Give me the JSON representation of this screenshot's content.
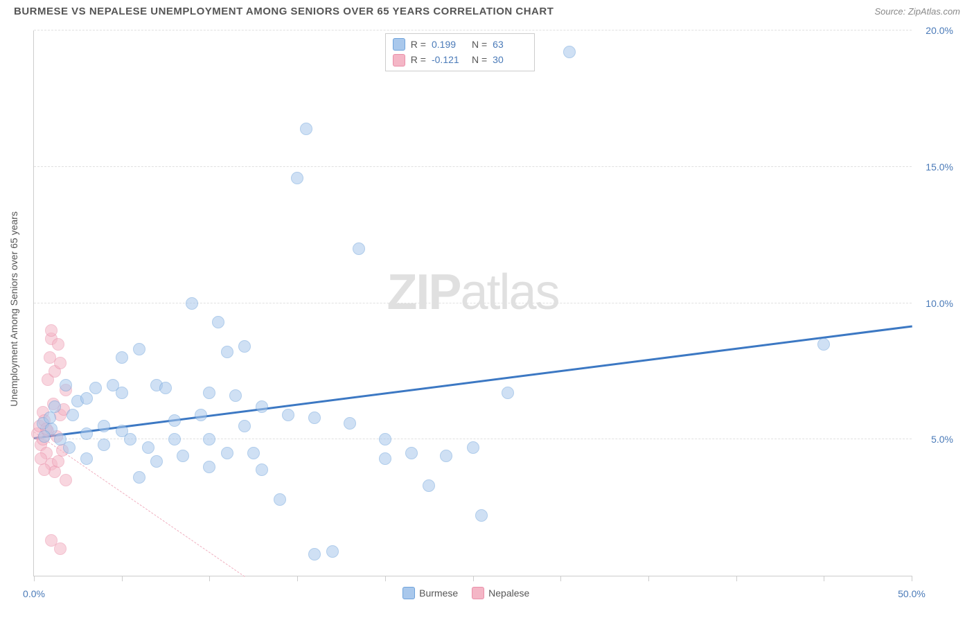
{
  "header": {
    "title": "BURMESE VS NEPALESE UNEMPLOYMENT AMONG SENIORS OVER 65 YEARS CORRELATION CHART",
    "source": "Source: ZipAtlas.com"
  },
  "watermark": {
    "bold": "ZIP",
    "light": "atlas"
  },
  "chart": {
    "type": "scatter",
    "ylabel": "Unemployment Among Seniors over 65 years",
    "xlim": [
      0,
      50
    ],
    "ylim": [
      0,
      20
    ],
    "x_ticks": [
      0,
      5,
      10,
      15,
      20,
      25,
      30,
      35,
      40,
      45,
      50
    ],
    "y_grid": [
      5,
      10,
      15,
      20
    ],
    "x_axis_labels": [
      {
        "value": 0,
        "label": "0.0%"
      },
      {
        "value": 50,
        "label": "50.0%"
      }
    ],
    "y_axis_labels": [
      {
        "value": 5,
        "label": "5.0%"
      },
      {
        "value": 10,
        "label": "10.0%"
      },
      {
        "value": 15,
        "label": "15.0%"
      },
      {
        "value": 20,
        "label": "20.0%"
      }
    ],
    "background_color": "#ffffff",
    "grid_color": "#e0e0e0",
    "axis_color": "#cccccc",
    "tick_label_color": "#4a7ab8",
    "marker_radius": 9,
    "marker_opacity": 0.55,
    "series": [
      {
        "name": "Burmese",
        "color_fill": "#a9c8ec",
        "color_stroke": "#6fa3db",
        "R": "0.199",
        "N": "63",
        "trend": {
          "x1": 0,
          "y1": 5.1,
          "x2": 50,
          "y2": 9.2,
          "width": 3,
          "dash": "solid",
          "color": "#3c78c3"
        },
        "points": [
          [
            0.5,
            5.6
          ],
          [
            1.0,
            5.4
          ],
          [
            1.2,
            6.2
          ],
          [
            1.5,
            5.0
          ],
          [
            1.8,
            7.0
          ],
          [
            2.0,
            4.7
          ],
          [
            2.2,
            5.9
          ],
          [
            0.6,
            5.1
          ],
          [
            0.9,
            5.8
          ],
          [
            2.5,
            6.4
          ],
          [
            3.0,
            5.2
          ],
          [
            3.0,
            4.3
          ],
          [
            3.0,
            6.5
          ],
          [
            3.5,
            6.9
          ],
          [
            4.0,
            5.5
          ],
          [
            4.0,
            4.8
          ],
          [
            4.5,
            7.0
          ],
          [
            5.0,
            6.7
          ],
          [
            5.0,
            5.3
          ],
          [
            5.0,
            8.0
          ],
          [
            5.5,
            5.0
          ],
          [
            6.0,
            8.3
          ],
          [
            6.5,
            4.7
          ],
          [
            7.0,
            4.2
          ],
          [
            7.0,
            7.0
          ],
          [
            7.5,
            6.9
          ],
          [
            8.0,
            5.7
          ],
          [
            8.0,
            5.0
          ],
          [
            8.5,
            4.4
          ],
          [
            9.0,
            10.0
          ],
          [
            9.5,
            5.9
          ],
          [
            10.0,
            5.0
          ],
          [
            10.0,
            6.7
          ],
          [
            10.0,
            4.0
          ],
          [
            10.5,
            9.3
          ],
          [
            11.0,
            4.5
          ],
          [
            11.0,
            8.2
          ],
          [
            11.5,
            6.6
          ],
          [
            12.0,
            8.4
          ],
          [
            12.5,
            4.5
          ],
          [
            13.0,
            3.9
          ],
          [
            13.0,
            6.2
          ],
          [
            14.0,
            2.8
          ],
          [
            14.5,
            5.9
          ],
          [
            15.0,
            14.6
          ],
          [
            15.5,
            16.4
          ],
          [
            16.0,
            5.8
          ],
          [
            16.0,
            0.8
          ],
          [
            17.0,
            0.9
          ],
          [
            18.0,
            5.6
          ],
          [
            18.5,
            12.0
          ],
          [
            20.0,
            5.0
          ],
          [
            20.0,
            4.3
          ],
          [
            21.5,
            4.5
          ],
          [
            22.5,
            3.3
          ],
          [
            23.5,
            4.4
          ],
          [
            25.0,
            4.7
          ],
          [
            25.5,
            2.2
          ],
          [
            27.0,
            6.7
          ],
          [
            30.5,
            19.2
          ],
          [
            45.0,
            8.5
          ],
          [
            12.0,
            5.5
          ],
          [
            6.0,
            3.6
          ]
        ]
      },
      {
        "name": "Nepalese",
        "color_fill": "#f4b6c6",
        "color_stroke": "#ea8fa9",
        "R": "-0.121",
        "N": "30",
        "trend": {
          "x1": 0,
          "y1": 5.3,
          "x2": 12,
          "y2": 0,
          "width": 1,
          "dash": "dashed",
          "color": "#f0b0c0"
        },
        "points": [
          [
            0.2,
            5.2
          ],
          [
            0.3,
            5.5
          ],
          [
            0.4,
            4.8
          ],
          [
            0.5,
            6.0
          ],
          [
            0.5,
            5.0
          ],
          [
            0.6,
            5.7
          ],
          [
            0.7,
            4.5
          ],
          [
            0.8,
            7.2
          ],
          [
            0.8,
            5.3
          ],
          [
            0.9,
            8.0
          ],
          [
            1.0,
            8.7
          ],
          [
            1.0,
            4.1
          ],
          [
            1.0,
            9.0
          ],
          [
            1.1,
            6.3
          ],
          [
            1.2,
            7.5
          ],
          [
            1.2,
            3.8
          ],
          [
            1.3,
            5.1
          ],
          [
            1.4,
            8.5
          ],
          [
            1.4,
            4.2
          ],
          [
            1.5,
            5.9
          ],
          [
            1.5,
            7.8
          ],
          [
            1.6,
            4.6
          ],
          [
            1.7,
            6.1
          ],
          [
            1.8,
            3.5
          ],
          [
            1.8,
            6.8
          ],
          [
            1.0,
            1.3
          ],
          [
            1.5,
            1.0
          ],
          [
            0.6,
            3.9
          ],
          [
            0.4,
            4.3
          ],
          [
            0.7,
            5.4
          ]
        ]
      }
    ]
  },
  "legend": {
    "items": [
      {
        "label": "Burmese",
        "fill": "#a9c8ec",
        "stroke": "#6fa3db"
      },
      {
        "label": "Nepalese",
        "fill": "#f4b6c6",
        "stroke": "#ea8fa9"
      }
    ]
  }
}
